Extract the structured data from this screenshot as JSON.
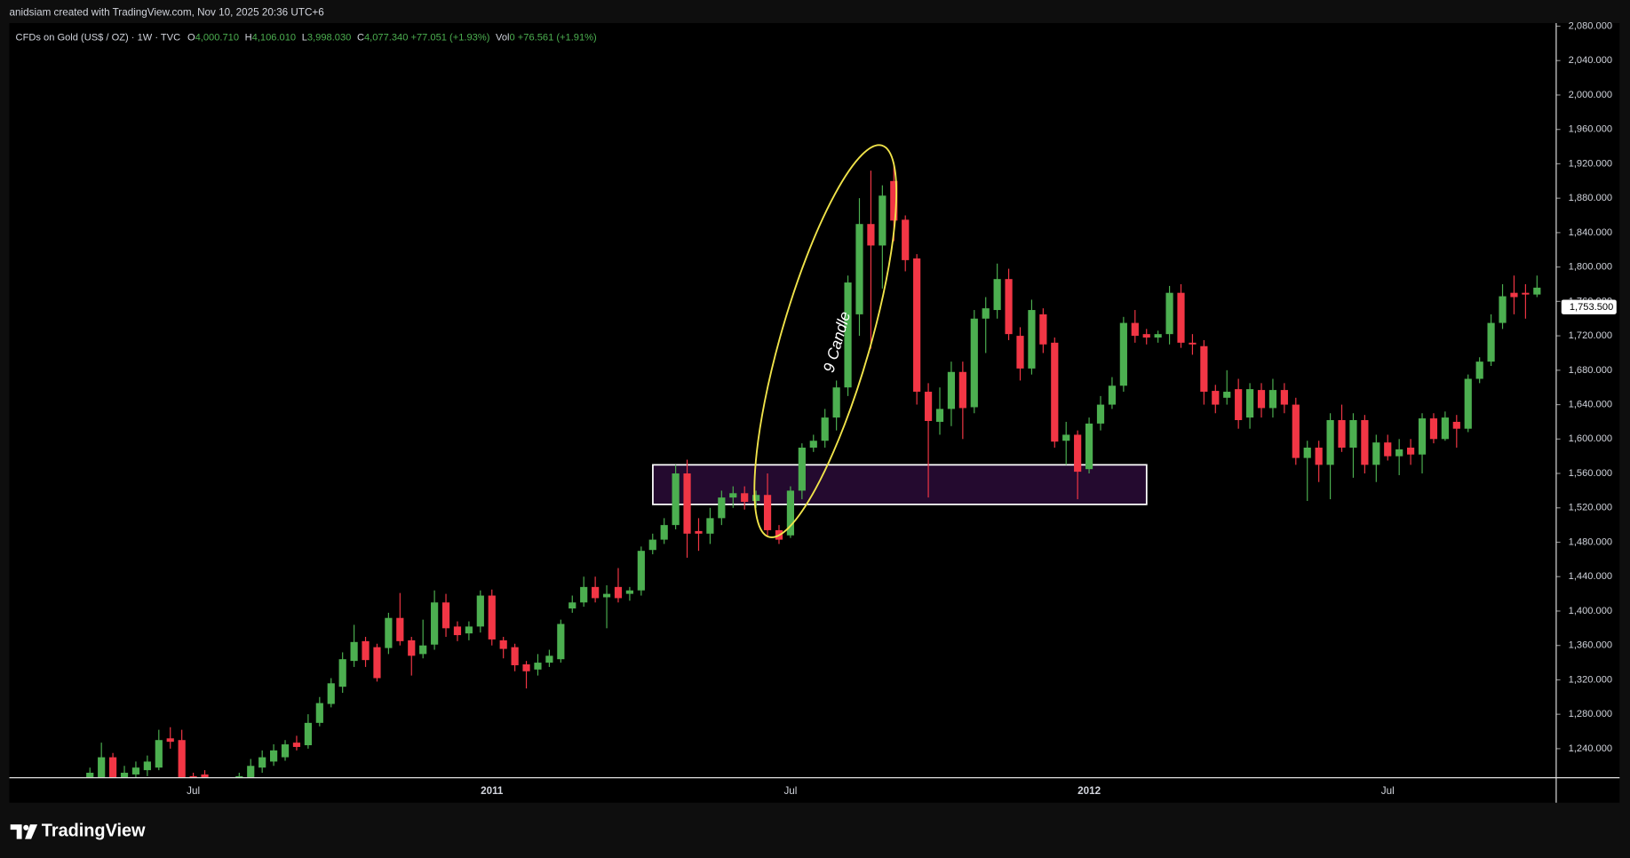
{
  "header": {
    "watermark": "anidsiam created with TradingView.com, Nov 10, 2025 20:36 UTC+6"
  },
  "legend": {
    "symbol": "CFDs on Gold (US$ / OZ) · 1W · TVC",
    "o_label": "O",
    "o": "4,000.710",
    "h_label": "H",
    "h": "4,106.010",
    "l_label": "L",
    "l": "3,998.030",
    "c_label": "C",
    "c": "4,077.340",
    "change": "+77.051 (+1.93%)",
    "vol_label": "Vol",
    "vol": "0",
    "vol_change": "+76.561 (+1.91%)"
  },
  "chart_data": {
    "type": "candlestick",
    "categories": [
      null,
      null,
      null,
      null,
      null,
      null,
      null,
      null,
      null,
      "Jul",
      null,
      null,
      null,
      null,
      null,
      null,
      null,
      null,
      null,
      null,
      null,
      null,
      null,
      null,
      null,
      null,
      null,
      null,
      null,
      null,
      null,
      null,
      null,
      null,
      null,
      "2011",
      null,
      null,
      null,
      null,
      null,
      null,
      null,
      null,
      null,
      null,
      null,
      null,
      null,
      null,
      null,
      null,
      null,
      null,
      null,
      null,
      null,
      null,
      null,
      null,
      null,
      "Jul",
      null,
      null,
      null,
      null,
      null,
      null,
      null,
      null,
      null,
      null,
      null,
      null,
      null,
      null,
      null,
      null,
      null,
      null,
      null,
      null,
      null,
      null,
      null,
      null,
      null,
      "2012",
      null,
      null,
      null,
      null,
      null,
      null,
      null,
      null,
      null,
      null,
      null,
      null,
      null,
      null,
      null,
      null,
      null,
      null,
      null,
      null,
      null,
      null,
      null,
      null,
      null,
      "Jul",
      null,
      null,
      null,
      null,
      null,
      null,
      null,
      null,
      null,
      null,
      null,
      null,
      null
    ],
    "open": [
      1205,
      1200,
      1230,
      1205,
      1210,
      1215,
      1218,
      1252,
      1250,
      1208,
      1210,
      1195,
      1196,
      1198,
      1205,
      1218,
      1225,
      1230,
      1247,
      1244,
      1270,
      1292,
      1312,
      1342,
      1365,
      1358,
      1357,
      1392,
      1366,
      1350,
      1361,
      1410,
      1382,
      1374,
      1382,
      1418,
      1366,
      1358,
      1338,
      1332,
      1340,
      1344,
      1403,
      1410,
      1428,
      1416,
      1428,
      1420,
      1424,
      1471,
      1483,
      1500,
      1560,
      1493,
      1490,
      1508,
      1532,
      1537,
      1528,
      1535,
      1494,
      1488,
      1540,
      1590,
      1598,
      1625,
      1660,
      1745,
      1850,
      1825,
      1900,
      1855,
      1810,
      1655,
      1620,
      1635,
      1678,
      1637,
      1740,
      1750,
      1786,
      1720,
      1682,
      1745,
      1712,
      1598,
      1605,
      1565,
      1618,
      1640,
      1662,
      1735,
      1722,
      1718,
      1722,
      1770,
      1712,
      1708,
      1656,
      1648,
      1658,
      1625,
      1657,
      1636,
      1657,
      1640,
      1578,
      1590,
      1570,
      1622,
      1590,
      1622,
      1570,
      1596,
      1580,
      1590,
      1582,
      1624,
      1600,
      1620,
      1612,
      1670,
      1690,
      1735,
      1770,
      1770,
      1768
    ],
    "high": [
      1218,
      1247,
      1235,
      1220,
      1225,
      1232,
      1262,
      1265,
      1262,
      1212,
      1215,
      1202,
      1205,
      1212,
      1228,
      1238,
      1245,
      1250,
      1255,
      1280,
      1300,
      1322,
      1352,
      1384,
      1370,
      1362,
      1398,
      1421,
      1370,
      1390,
      1424,
      1420,
      1388,
      1388,
      1424,
      1425,
      1370,
      1362,
      1342,
      1350,
      1355,
      1390,
      1418,
      1440,
      1440,
      1430,
      1450,
      1428,
      1475,
      1490,
      1508,
      1570,
      1576,
      1508,
      1520,
      1540,
      1545,
      1545,
      1540,
      1560,
      1500,
      1545,
      1595,
      1605,
      1635,
      1668,
      1790,
      1880,
      1912,
      1895,
      1920,
      1860,
      1815,
      1665,
      1660,
      1690,
      1690,
      1750,
      1765,
      1804,
      1798,
      1730,
      1762,
      1752,
      1718,
      1620,
      1610,
      1625,
      1650,
      1672,
      1742,
      1750,
      1728,
      1726,
      1778,
      1780,
      1722,
      1715,
      1663,
      1680,
      1670,
      1665,
      1665,
      1670,
      1665,
      1648,
      1598,
      1598,
      1630,
      1640,
      1630,
      1628,
      1605,
      1605,
      1600,
      1600,
      1630,
      1630,
      1632,
      1628,
      1675,
      1695,
      1745,
      1780,
      1790,
      1780,
      1790
    ],
    "low": [
      1200,
      1195,
      1195,
      1198,
      1205,
      1208,
      1215,
      1240,
      1195,
      1195,
      1198,
      1190,
      1190,
      1194,
      1200,
      1212,
      1220,
      1226,
      1238,
      1240,
      1266,
      1288,
      1305,
      1335,
      1335,
      1318,
      1350,
      1360,
      1325,
      1345,
      1355,
      1370,
      1365,
      1366,
      1375,
      1360,
      1345,
      1330,
      1310,
      1325,
      1335,
      1340,
      1398,
      1405,
      1410,
      1380,
      1410,
      1412,
      1418,
      1466,
      1478,
      1495,
      1462,
      1470,
      1478,
      1500,
      1520,
      1518,
      1520,
      1488,
      1478,
      1485,
      1530,
      1585,
      1590,
      1610,
      1650,
      1720,
      1705,
      1775,
      1830,
      1795,
      1640,
      1532,
      1605,
      1615,
      1600,
      1630,
      1700,
      1740,
      1715,
      1668,
      1675,
      1700,
      1590,
      1570,
      1530,
      1560,
      1610,
      1635,
      1655,
      1712,
      1710,
      1712,
      1710,
      1706,
      1698,
      1640,
      1630,
      1640,
      1612,
      1612,
      1625,
      1625,
      1630,
      1570,
      1528,
      1550,
      1530,
      1585,
      1555,
      1560,
      1550,
      1575,
      1558,
      1570,
      1560,
      1595,
      1598,
      1590,
      1608,
      1665,
      1685,
      1728,
      1745,
      1740,
      1765
    ],
    "close": [
      1212,
      1230,
      1203,
      1212,
      1218,
      1225,
      1250,
      1248,
      1205,
      1203,
      1204,
      1198,
      1200,
      1208,
      1220,
      1230,
      1238,
      1245,
      1242,
      1270,
      1293,
      1316,
      1344,
      1364,
      1343,
      1322,
      1392,
      1365,
      1348,
      1360,
      1410,
      1380,
      1372,
      1382,
      1418,
      1367,
      1356,
      1337,
      1330,
      1340,
      1348,
      1385,
      1410,
      1428,
      1415,
      1420,
      1415,
      1424,
      1470,
      1483,
      1500,
      1560,
      1490,
      1490,
      1508,
      1532,
      1537,
      1527,
      1535,
      1494,
      1483,
      1540,
      1590,
      1598,
      1625,
      1660,
      1782,
      1850,
      1825,
      1883,
      1854,
      1808,
      1655,
      1621,
      1635,
      1678,
      1636,
      1740,
      1752,
      1786,
      1722,
      1682,
      1750,
      1710,
      1597,
      1605,
      1562,
      1618,
      1640,
      1662,
      1735,
      1720,
      1718,
      1722,
      1770,
      1712,
      1710,
      1655,
      1640,
      1655,
      1622,
      1658,
      1636,
      1657,
      1640,
      1578,
      1590,
      1570,
      1622,
      1590,
      1622,
      1570,
      1596,
      1580,
      1588,
      1582,
      1624,
      1600,
      1625,
      1612,
      1670,
      1690,
      1735,
      1766,
      1765,
      1768,
      1776
    ],
    "up_color": "#4caf50",
    "down_color": "#f23645",
    "ylim": [
      1206.2,
      2083.6
    ],
    "yticks": [
      {
        "value": 1240,
        "label": "1,240.000"
      },
      {
        "value": 1280,
        "label": "1,280.000"
      },
      {
        "value": 1320,
        "label": "1,320.000"
      },
      {
        "value": 1360,
        "label": "1,360.000"
      },
      {
        "value": 1400,
        "label": "1,400.000"
      },
      {
        "value": 1440,
        "label": "1,440.000"
      },
      {
        "value": 1480,
        "label": "1,480.000"
      },
      {
        "value": 1520,
        "label": "1,520.000"
      },
      {
        "value": 1560,
        "label": "1,560.000"
      },
      {
        "value": 1600,
        "label": "1,600.000"
      },
      {
        "value": 1640,
        "label": "1,640.000"
      },
      {
        "value": 1680,
        "label": "1,680.000"
      },
      {
        "value": 1720,
        "label": "1,720.000"
      },
      {
        "value": 1760,
        "label": "1,760.000"
      },
      {
        "value": 1800,
        "label": "1,800.000"
      },
      {
        "value": 1840,
        "label": "1,840.000"
      },
      {
        "value": 1880,
        "label": "1,880.000"
      },
      {
        "value": 1920,
        "label": "1,920.000"
      },
      {
        "value": 1960,
        "label": "1,960.000"
      },
      {
        "value": 2000,
        "label": "2,000.000"
      },
      {
        "value": 2040,
        "label": "2,040.000"
      },
      {
        "value": 2080,
        "label": "2,080.000"
      }
    ],
    "last_price": {
      "value": 1753.5,
      "label": "1,753.500"
    },
    "zone": {
      "low": 1524,
      "high": 1570
    },
    "annotation": "9 Candle",
    "grid": false
  },
  "footer": {
    "brand": "TradingView"
  }
}
